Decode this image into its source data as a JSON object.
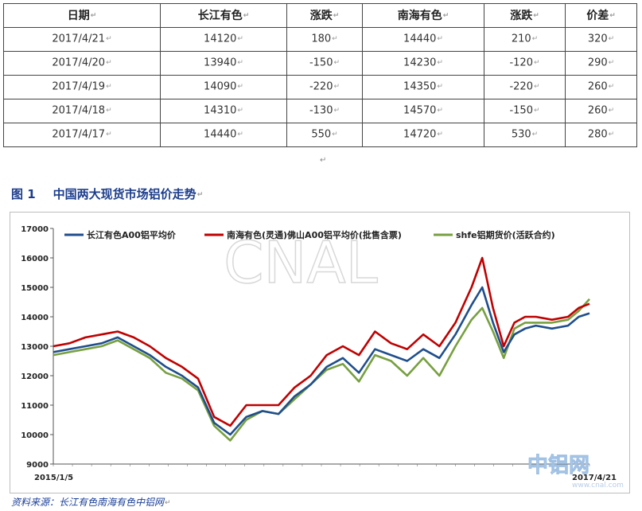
{
  "table": {
    "headers": [
      "日期",
      "长江有色",
      "涨跌",
      "南海有色",
      "涨跌",
      "价差"
    ],
    "rows": [
      [
        "2017/4/21",
        "14120",
        "180",
        "14440",
        "210",
        "320"
      ],
      [
        "2017/4/20",
        "13940",
        "-150",
        "14230",
        "-120",
        "290"
      ],
      [
        "2017/4/19",
        "14090",
        "-220",
        "14350",
        "-220",
        "260"
      ],
      [
        "2017/4/18",
        "14310",
        "-130",
        "14570",
        "-150",
        "260"
      ],
      [
        "2017/4/17",
        "14440",
        "550",
        "14720",
        "530",
        "280"
      ]
    ]
  },
  "paragraph_mark": "↵",
  "figure": {
    "number": "图 1",
    "title": "中国两大现货市场铝价走势",
    "mark": "↵"
  },
  "chart_data": {
    "type": "line",
    "ylim": [
      9000,
      17000
    ],
    "yticks": [
      9000,
      10000,
      11000,
      12000,
      13000,
      14000,
      15000,
      16000,
      17000
    ],
    "x_start_label": "2015/1/5",
    "x_end_label": "2017/4/21",
    "x_fraction": [
      0,
      0.03,
      0.06,
      0.09,
      0.12,
      0.15,
      0.18,
      0.21,
      0.24,
      0.27,
      0.3,
      0.33,
      0.36,
      0.39,
      0.42,
      0.45,
      0.48,
      0.51,
      0.54,
      0.57,
      0.6,
      0.63,
      0.66,
      0.69,
      0.72,
      0.75,
      0.78,
      0.8,
      0.82,
      0.84,
      0.86,
      0.88,
      0.9,
      0.93,
      0.96,
      0.98,
      1.0
    ],
    "series": [
      {
        "name": "长江有色A00铝平均价",
        "color": "#1f4e8c",
        "values": [
          12800,
          12900,
          13000,
          13100,
          13300,
          13000,
          12700,
          12300,
          12000,
          11600,
          10400,
          10000,
          10600,
          10800,
          10700,
          11300,
          11700,
          12300,
          12600,
          12100,
          12900,
          12700,
          12500,
          12900,
          12600,
          13400,
          14400,
          15000,
          13800,
          12800,
          13400,
          13600,
          13700,
          13600,
          13700,
          14000,
          14120
        ]
      },
      {
        "name": "南海有色(灵通)佛山A00铝平均价(批售含票)",
        "color": "#c00000",
        "values": [
          13000,
          13100,
          13300,
          13400,
          13500,
          13300,
          13000,
          12600,
          12300,
          11900,
          10600,
          10300,
          11000,
          11000,
          11000,
          11600,
          12000,
          12700,
          13000,
          12700,
          13500,
          13100,
          12900,
          13400,
          13000,
          13800,
          15000,
          16000,
          14300,
          13000,
          13800,
          14000,
          14000,
          13900,
          14000,
          14300,
          14440
        ]
      },
      {
        "name": "shfe铝期货价(活跃合约)",
        "color": "#77a040",
        "values": [
          12700,
          12800,
          12900,
          13000,
          13200,
          12900,
          12600,
          12100,
          11900,
          11500,
          10300,
          9800,
          10500,
          10800,
          10700,
          11200,
          11700,
          12200,
          12400,
          11800,
          12700,
          12500,
          12000,
          12600,
          12000,
          13000,
          13900,
          14300,
          13500,
          12600,
          13600,
          13800,
          13800,
          13800,
          13900,
          14200,
          14600
        ]
      }
    ]
  },
  "watermark": "CNAL",
  "logo": {
    "text": "中铝网",
    "url": "www.cnal.com"
  },
  "source": {
    "text": "资料来源：长江有色南海有色中铝网",
    "mark": "↵"
  }
}
